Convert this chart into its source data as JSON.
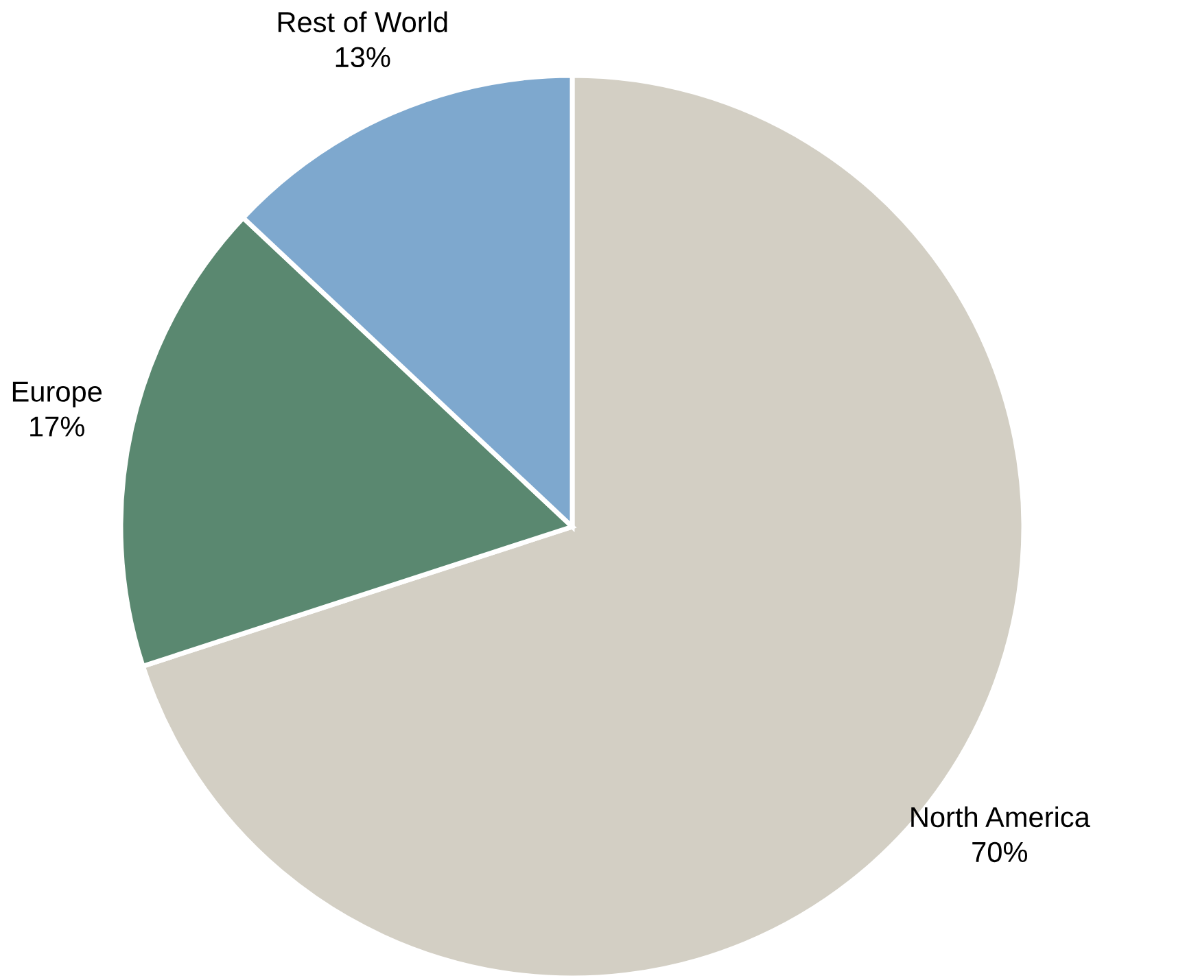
{
  "chart_data": {
    "type": "pie",
    "categories": [
      "North America",
      "Europe",
      "Rest of World"
    ],
    "values": [
      70,
      17,
      13
    ],
    "value_labels": [
      "70%",
      "17%",
      "13%"
    ],
    "colors": [
      "#d3cfc4",
      "#5a8870",
      "#7ea8ce"
    ],
    "legend": false
  }
}
